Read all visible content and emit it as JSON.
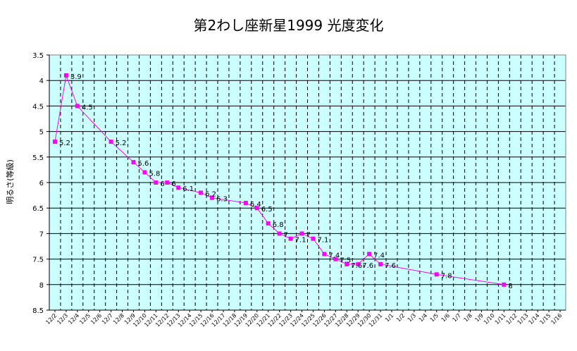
{
  "chart_data": {
    "type": "line",
    "title": "第2わし座新星1999 光度変化",
    "xlabel": "",
    "ylabel": "明るさ(等級)",
    "ylim": [
      3.5,
      8.5
    ],
    "y_reversed": true,
    "y_ticks": [
      "3.5",
      "4",
      "4.5",
      "5",
      "5.5",
      "6",
      "6.5",
      "7",
      "7.5",
      "8",
      "8.5"
    ],
    "grid": true,
    "background_color": "#ccffff",
    "line_color": "#ff00ff",
    "categories": [
      "12/2",
      "12/3",
      "12/4",
      "12/5",
      "12/6",
      "12/7",
      "12/8",
      "12/9",
      "12/10",
      "12/11",
      "12/12",
      "12/13",
      "12/14",
      "12/15",
      "12/16",
      "12/17",
      "12/18",
      "12/19",
      "12/20",
      "12/21",
      "12/22",
      "12/23",
      "12/24",
      "12/25",
      "12/26",
      "12/27",
      "12/28",
      "12/29",
      "12/30",
      "12/31",
      "1/1",
      "1/2",
      "1/3",
      "1/4",
      "1/5",
      "1/6",
      "1/7",
      "1/8",
      "1/9",
      "1/10",
      "1/11",
      "1/12",
      "1/13",
      "1/14",
      "1/15",
      "1/16"
    ],
    "x_tick_labels": [
      "12/2",
      "12/3",
      "12/4",
      "12/5",
      "12/6",
      "12/7",
      "12/8",
      "12/9",
      "12/10",
      "12/11",
      "12/12",
      "12/13",
      "12/14",
      "12/15",
      "12/16",
      "12/17",
      "12/18",
      "12/19",
      "12/20",
      "12/21",
      "12/22",
      "12/23",
      "12/24",
      "12/25",
      "12/26",
      "12/27",
      "12/28",
      "12/29",
      "12/30",
      "12/31",
      "1/1",
      "1/2",
      "1/3",
      "1/4",
      "1/5",
      "1/6",
      "1/7",
      "1/8",
      "1/9",
      "1/10",
      "1/11",
      "1/12",
      "1/13",
      "1/14",
      "1/15",
      "1/16"
    ],
    "series": [
      {
        "points": [
          {
            "x": "12/2",
            "y": 5.2,
            "label": "5.2"
          },
          {
            "x": "12/3",
            "y": 3.9,
            "label": "3.9"
          },
          {
            "x": "12/4",
            "y": 4.5,
            "label": "4.5"
          },
          {
            "x": "12/7",
            "y": 5.2,
            "label": "5.2"
          },
          {
            "x": "12/9",
            "y": 5.6,
            "label": "5.6"
          },
          {
            "x": "12/10",
            "y": 5.8,
            "label": "5.8"
          },
          {
            "x": "12/11",
            "y": 6,
            "label": "6"
          },
          {
            "x": "12/12",
            "y": 6,
            "label": "6"
          },
          {
            "x": "12/13",
            "y": 6.1,
            "label": "6.1"
          },
          {
            "x": "12/15",
            "y": 6.2,
            "label": "6.2"
          },
          {
            "x": "12/16",
            "y": 6.3,
            "label": "6.3"
          },
          {
            "x": "12/19",
            "y": 6.4,
            "label": "6.4"
          },
          {
            "x": "12/20",
            "y": 6.5,
            "label": "6.5"
          },
          {
            "x": "12/21",
            "y": 6.8,
            "label": "6.8"
          },
          {
            "x": "12/22",
            "y": 7,
            "label": "7"
          },
          {
            "x": "12/23",
            "y": 7.1,
            "label": "7.1"
          },
          {
            "x": "12/24",
            "y": 7,
            "label": "7"
          },
          {
            "x": "12/25",
            "y": 7.1,
            "label": "7.1"
          },
          {
            "x": "12/26",
            "y": 7.4,
            "label": "7.4"
          },
          {
            "x": "12/27",
            "y": 7.5,
            "label": "7.5"
          },
          {
            "x": "12/28",
            "y": 7.6,
            "label": "7.6"
          },
          {
            "x": "12/29",
            "y": 7.6,
            "label": "7.6"
          },
          {
            "x": "12/30",
            "y": 7.4,
            "label": "7.4"
          },
          {
            "x": "12/31",
            "y": 7.6,
            "label": "7.6"
          },
          {
            "x": "1/5",
            "y": 7.8,
            "label": "7.8"
          },
          {
            "x": "1/11",
            "y": 8,
            "label": "8"
          }
        ]
      }
    ]
  }
}
